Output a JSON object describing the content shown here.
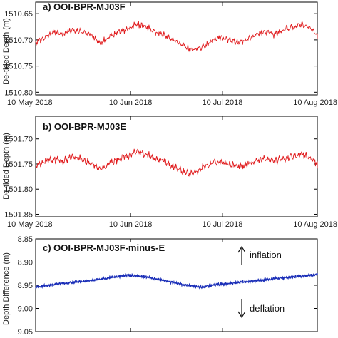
{
  "chart_data": [
    {
      "type": "line",
      "title": "a) OOI-BPR-MJ03F",
      "xlabel": "",
      "ylabel": "De-tided Depth (m)",
      "x_ticks": [
        "10 May 2018",
        "10 Jun 2018",
        "10 Jul 2018",
        "10 Aug 2018"
      ],
      "y_ticks": [
        "1510.65",
        "1510.70",
        "1510.75",
        "1510.80"
      ],
      "ylim": [
        1510.805,
        1510.628
      ],
      "y_inverted": true,
      "series_color": "#e0191b",
      "series": [
        {
          "x": [
            "2018-05-10",
            "2018-05-13",
            "2018-05-16",
            "2018-05-19",
            "2018-05-22",
            "2018-05-25",
            "2018-05-28",
            "2018-05-31",
            "2018-06-03",
            "2018-06-06",
            "2018-06-09",
            "2018-06-12",
            "2018-06-15",
            "2018-06-18",
            "2018-06-21",
            "2018-06-24",
            "2018-06-27",
            "2018-06-30",
            "2018-07-03",
            "2018-07-06",
            "2018-07-09",
            "2018-07-12",
            "2018-07-15",
            "2018-07-18",
            "2018-07-21",
            "2018-07-24",
            "2018-07-27",
            "2018-07-30",
            "2018-08-02",
            "2018-08-05",
            "2018-08-08",
            "2018-08-11"
          ],
          "values": [
            1510.705,
            1510.695,
            1510.685,
            1510.69,
            1510.68,
            1510.685,
            1510.69,
            1510.705,
            1510.695,
            1510.685,
            1510.68,
            1510.67,
            1510.675,
            1510.685,
            1510.69,
            1510.7,
            1510.71,
            1510.72,
            1510.715,
            1510.705,
            1510.695,
            1510.7,
            1510.705,
            1510.7,
            1510.69,
            1510.685,
            1510.69,
            1510.68,
            1510.675,
            1510.67,
            1510.68,
            1510.695
          ]
        }
      ]
    },
    {
      "type": "line",
      "title": "b) OOI-BPR-MJ03E",
      "xlabel": "",
      "ylabel": "De-tided Depth (m)",
      "x_ticks": [
        "10 May 2018",
        "10 Jun 2018",
        "10 Jul 2018",
        "10 Aug 2018"
      ],
      "y_ticks": [
        "1501.70",
        "1501.75",
        "1501.80",
        "1501.85"
      ],
      "ylim": [
        1501.855,
        1501.655
      ],
      "y_inverted": true,
      "series_color": "#e0191b",
      "series": [
        {
          "x": [
            "2018-05-10",
            "2018-05-13",
            "2018-05-16",
            "2018-05-19",
            "2018-05-22",
            "2018-05-25",
            "2018-05-28",
            "2018-05-31",
            "2018-06-03",
            "2018-06-06",
            "2018-06-09",
            "2018-06-12",
            "2018-06-15",
            "2018-06-18",
            "2018-06-21",
            "2018-06-24",
            "2018-06-27",
            "2018-06-30",
            "2018-07-03",
            "2018-07-06",
            "2018-07-09",
            "2018-07-12",
            "2018-07-15",
            "2018-07-18",
            "2018-07-21",
            "2018-07-24",
            "2018-07-27",
            "2018-07-30",
            "2018-08-02",
            "2018-08-05",
            "2018-08-08",
            "2018-08-11"
          ],
          "values": [
            1501.755,
            1501.745,
            1501.74,
            1501.745,
            1501.735,
            1501.74,
            1501.75,
            1501.76,
            1501.75,
            1501.74,
            1501.735,
            1501.725,
            1501.73,
            1501.74,
            1501.745,
            1501.755,
            1501.765,
            1501.77,
            1501.76,
            1501.75,
            1501.745,
            1501.75,
            1501.755,
            1501.75,
            1501.745,
            1501.74,
            1501.745,
            1501.74,
            1501.735,
            1501.73,
            1501.74,
            1501.755
          ]
        }
      ]
    },
    {
      "type": "line",
      "title": "c) OOI-BPR-MJ03F-minus-E",
      "xlabel": "",
      "ylabel": "Depth Difference (m)",
      "x_ticks": [],
      "y_ticks": [
        "8.85",
        "8.90",
        "8.95",
        "9.00",
        "9.05"
      ],
      "ylim": [
        9.05,
        8.85
      ],
      "y_inverted": true,
      "series_color": "#1b2fb8",
      "series": [
        {
          "x": [
            "2018-05-10",
            "2018-05-16",
            "2018-05-22",
            "2018-05-28",
            "2018-06-03",
            "2018-06-09",
            "2018-06-15",
            "2018-06-21",
            "2018-06-27",
            "2018-07-03",
            "2018-07-09",
            "2018-07-15",
            "2018-07-21",
            "2018-07-27",
            "2018-08-02",
            "2018-08-08",
            "2018-08-11"
          ],
          "values": [
            8.954,
            8.948,
            8.944,
            8.94,
            8.934,
            8.928,
            8.932,
            8.94,
            8.948,
            8.954,
            8.948,
            8.944,
            8.94,
            8.936,
            8.932,
            8.928,
            8.926
          ]
        }
      ],
      "annotations": [
        {
          "text": "inflation",
          "arrow": "up"
        },
        {
          "text": "deflation",
          "arrow": "down"
        }
      ]
    }
  ]
}
